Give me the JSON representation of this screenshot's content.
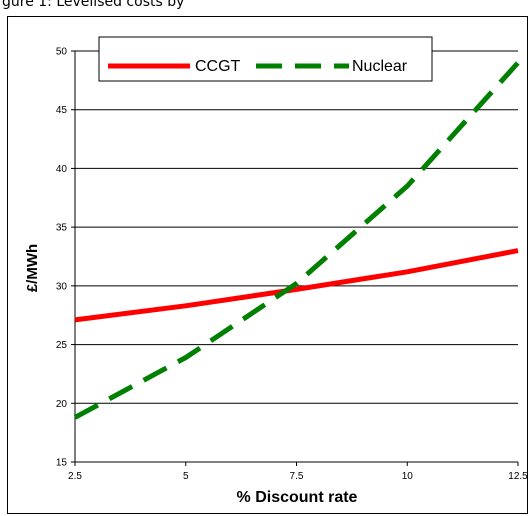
{
  "caption_text": "gure 1: Levelised costs by",
  "chart_data": {
    "type": "line",
    "title": "",
    "xlabel": "% Discount rate",
    "ylabel": "£/MWh",
    "xlim": [
      2.5,
      12.5
    ],
    "ylim": [
      15,
      50
    ],
    "x_ticks": [
      "2.5",
      "5",
      "7.5",
      "10",
      "12.5"
    ],
    "y_ticks": [
      "15",
      "20",
      "25",
      "30",
      "35",
      "40",
      "45",
      "50"
    ],
    "grid": "horizontal",
    "legend_position": "top-left",
    "series": [
      {
        "name": "CCGT",
        "color": "#ff0000",
        "dash": "solid",
        "x": [
          2.5,
          5,
          7.5,
          10,
          12.5
        ],
        "y": [
          27.1,
          28.3,
          29.7,
          31.2,
          33.0
        ]
      },
      {
        "name": "Nuclear",
        "color": "#008000",
        "dash": "dashed",
        "x": [
          2.5,
          5,
          7.5,
          10,
          12.5
        ],
        "y": [
          18.8,
          23.9,
          30.2,
          38.5,
          49.0
        ]
      }
    ]
  }
}
